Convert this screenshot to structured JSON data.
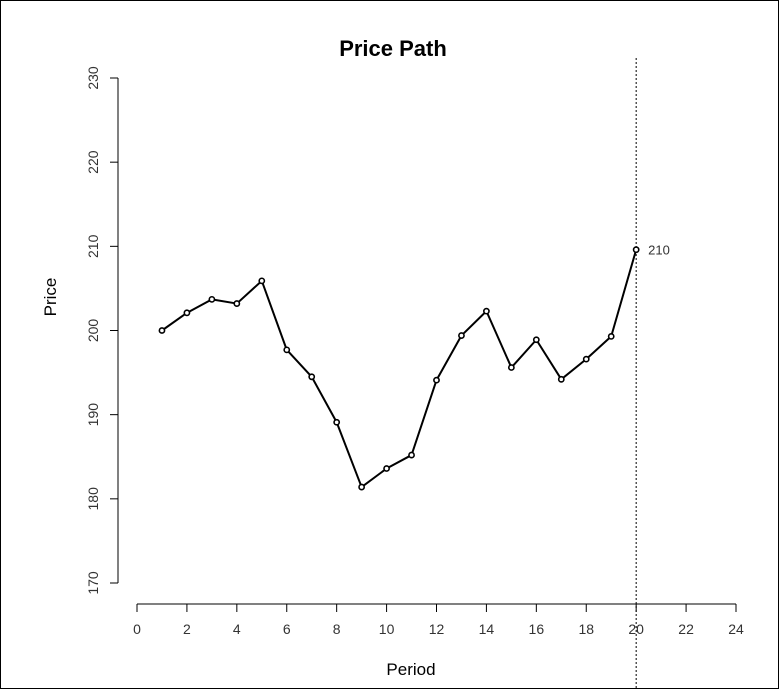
{
  "chart_data": {
    "type": "line",
    "title": "Price Path",
    "xlabel": "Period",
    "ylabel": "Price",
    "xlim": [
      0,
      24
    ],
    "ylim": [
      170,
      230
    ],
    "x_ticks": [
      0,
      2,
      4,
      6,
      8,
      10,
      12,
      14,
      16,
      18,
      20,
      22,
      24
    ],
    "y_ticks": [
      170,
      180,
      190,
      200,
      210,
      220,
      230
    ],
    "series": [
      {
        "x": [
          1,
          2,
          3,
          4,
          5,
          6,
          7,
          8,
          9,
          10,
          11,
          12,
          13,
          14,
          15,
          16,
          17,
          18,
          19,
          20
        ],
        "y": [
          200.0,
          202.1,
          203.7,
          203.2,
          205.9,
          197.7,
          194.5,
          189.1,
          181.4,
          183.6,
          185.2,
          194.1,
          199.4,
          202.3,
          195.6,
          198.9,
          194.2,
          196.6,
          199.3,
          209.6
        ]
      }
    ],
    "vline": {
      "x": 20,
      "style": "dotted"
    },
    "annotations": [
      {
        "x": 20,
        "y": 209.6,
        "text": "210"
      }
    ],
    "grid": false,
    "colors": {
      "line": "#000000",
      "axis": "#000000",
      "border": "#000000"
    }
  }
}
